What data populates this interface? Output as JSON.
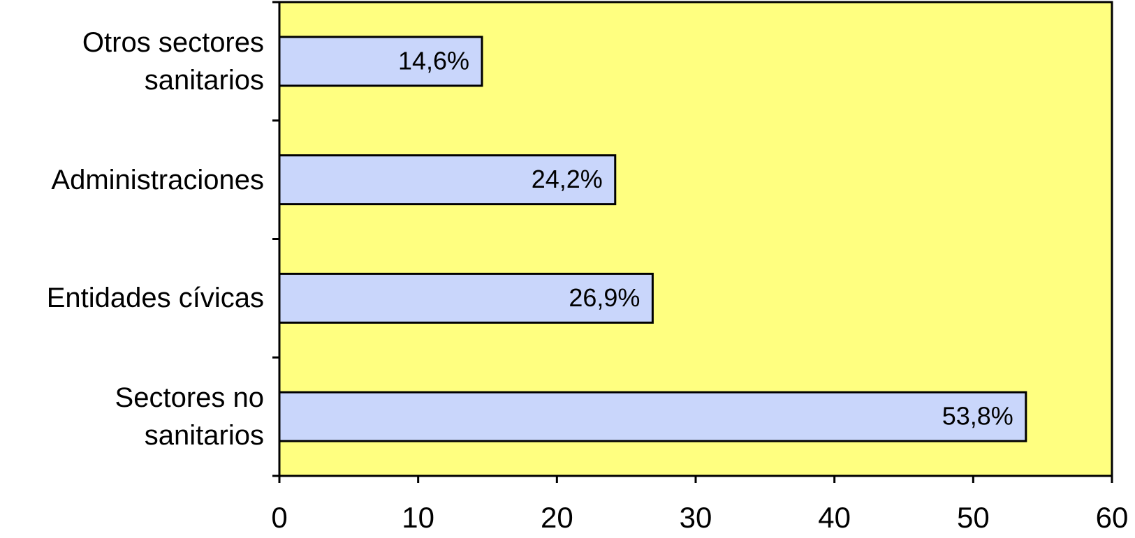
{
  "chart_data": {
    "type": "bar",
    "orientation": "horizontal",
    "categories": [
      "Otros sectores sanitarios",
      "Administraciones",
      "Entidades cívicas",
      "Sectores no sanitarios"
    ],
    "values": [
      14.6,
      24.2,
      26.9,
      53.8
    ],
    "value_labels": [
      "14,6%",
      "24,2%",
      "26,9%",
      "53,8%"
    ],
    "color": "#c9d6fb",
    "background": "#ffff80",
    "xlim": [
      0,
      60
    ],
    "xticks": [
      0,
      10,
      20,
      30,
      40,
      50,
      60
    ]
  }
}
